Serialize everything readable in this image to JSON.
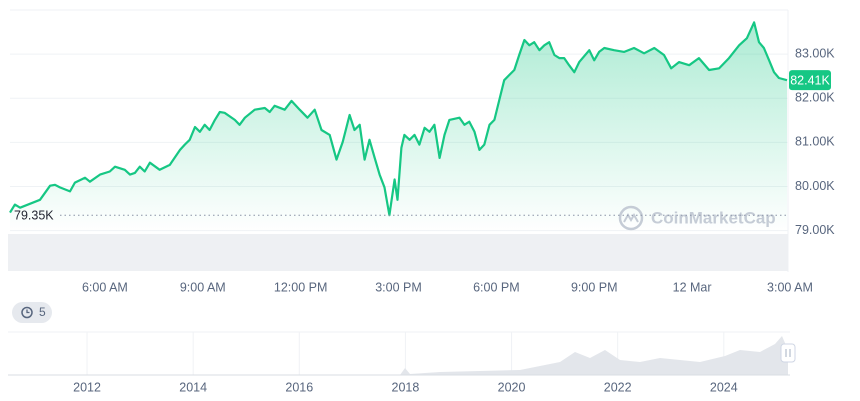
{
  "chart_data": {
    "type": "line",
    "x": [
      3.09,
      3.24,
      3.4,
      3.7,
      4.01,
      4.32,
      4.47,
      4.62,
      4.93,
      5.08,
      5.39,
      5.54,
      5.85,
      6.15,
      6.31,
      6.61,
      6.77,
      6.92,
      7.07,
      7.22,
      7.38,
      7.68,
      7.99,
      8.3,
      8.45,
      8.6,
      8.76,
      8.91,
      9.06,
      9.21,
      9.37,
      9.52,
      9.67,
      9.98,
      10.13,
      10.29,
      10.59,
      10.9,
      11.05,
      11.2,
      11.51,
      11.72,
      11.97,
      12.21,
      12.43,
      12.64,
      12.89,
      13.1,
      13.29,
      13.5,
      13.65,
      13.81,
      13.96,
      14.11,
      14.27,
      14.42,
      14.57,
      14.72,
      14.88,
      14.97,
      15.09,
      15.18,
      15.34,
      15.49,
      15.64,
      15.8,
      15.95,
      16.1,
      16.26,
      16.41,
      16.56,
      16.87,
      17.02,
      17.17,
      17.33,
      17.48,
      17.63,
      17.79,
      17.94,
      18.09,
      18.24,
      18.4,
      18.55,
      18.7,
      18.86,
      19.01,
      19.16,
      19.32,
      19.47,
      19.62,
      19.78,
      19.93,
      20.08,
      20.23,
      20.39,
      20.54,
      20.85,
      21.0,
      21.15,
      21.31,
      21.61,
      21.92,
      22.22,
      22.53,
      22.84,
      23.14,
      23.36,
      23.6,
      23.91,
      24.21,
      24.52,
      24.83,
      25.13,
      25.44,
      25.68,
      25.9,
      26.05,
      26.2,
      26.36,
      26.51,
      26.66,
      26.91
    ],
    "series": [
      {
        "color": "#16c784",
        "values": [
          79410,
          79590,
          79520,
          79610,
          79700,
          80020,
          80040,
          79980,
          79890,
          80090,
          80200,
          80110,
          80270,
          80340,
          80450,
          80380,
          80270,
          80310,
          80450,
          80340,
          80540,
          80380,
          80490,
          80830,
          80950,
          81060,
          81350,
          81240,
          81400,
          81280,
          81510,
          81690,
          81670,
          81510,
          81400,
          81560,
          81740,
          81780,
          81690,
          81830,
          81740,
          81940,
          81740,
          81560,
          81740,
          81280,
          81170,
          80610,
          81010,
          81620,
          81280,
          81400,
          80610,
          81060,
          80650,
          80270,
          79980,
          79350,
          80160,
          79700,
          80880,
          81170,
          81060,
          81170,
          80950,
          81330,
          81240,
          81400,
          80650,
          81170,
          81510,
          81560,
          81400,
          81470,
          81240,
          80830,
          80950,
          81400,
          81510,
          81960,
          82410,
          82530,
          82640,
          82980,
          83320,
          83200,
          83270,
          83090,
          83200,
          83270,
          82980,
          82910,
          82910,
          82750,
          82590,
          82820,
          83090,
          82860,
          83050,
          83140,
          83090,
          83050,
          83140,
          83020,
          83140,
          82980,
          82680,
          82820,
          82750,
          82910,
          82640,
          82680,
          82910,
          83200,
          83360,
          83720,
          83270,
          83140,
          82860,
          82590,
          82460,
          82410
        ]
      }
    ],
    "xlim": [
      3.09,
      26.94
    ],
    "xticks": [
      {
        "value": 6,
        "label": "6:00 AM"
      },
      {
        "value": 9,
        "label": "9:00 AM"
      },
      {
        "value": 12,
        "label": "12:00 PM"
      },
      {
        "value": 15,
        "label": "3:00 PM"
      },
      {
        "value": 18,
        "label": "6:00 PM"
      },
      {
        "value": 21,
        "label": "9:00 PM"
      },
      {
        "value": 24,
        "label": "12 Mar"
      },
      {
        "value": 27,
        "label": "3:00 AM"
      }
    ],
    "ylim": [
      78970,
      84000
    ],
    "yticks": [
      {
        "value": 79000,
        "label": "79.00K"
      },
      {
        "value": 80000,
        "label": "80.00K"
      },
      {
        "value": 81000,
        "label": "81.00K"
      },
      {
        "value": 82000,
        "label": "82.00K"
      },
      {
        "value": 83000,
        "label": "83.00K"
      }
    ],
    "grid": true,
    "current": {
      "value": 82410,
      "label": "82.41K"
    },
    "low": {
      "value": 79350,
      "label": "79.35K"
    },
    "watermark": "CoinMarketCap",
    "badge": 5,
    "overview": {
      "xlim": [
        2010.51,
        2025.21
      ],
      "xticks": [
        2012,
        2014,
        2016,
        2018,
        2020,
        2022,
        2024
      ]
    }
  }
}
